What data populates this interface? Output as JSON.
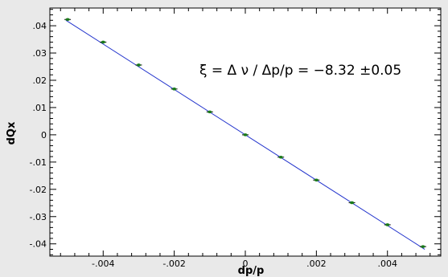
{
  "chart_data": {
    "type": "scatter",
    "xlabel": "dp/p",
    "ylabel": "dQx",
    "xlim": [
      -0.0055,
      0.0055
    ],
    "ylim": [
      -0.0445,
      0.0465
    ],
    "x_ticks": [
      -0.004,
      -0.002,
      0,
      0.002,
      0.004
    ],
    "x_tick_labels": [
      "-.004",
      "-.002",
      "0",
      ".002",
      ".004"
    ],
    "y_ticks": [
      0.04,
      0.03,
      0.02,
      0.01,
      0,
      -0.01,
      -0.02,
      -0.03,
      -0.04
    ],
    "y_tick_labels": [
      ".04",
      ".03",
      ".02",
      ".01",
      "0",
      "-.01",
      "-.02",
      "-.03",
      "-.04"
    ],
    "annotation": "ξ = Δ ν / Δp/p = −8.32 ±0.05",
    "grid": false,
    "series": [
      {
        "x": [
          -0.005,
          -0.004,
          -0.003,
          -0.002,
          -0.001,
          0.0,
          0.001,
          0.002,
          0.003,
          0.004,
          0.005
        ],
        "y": [
          0.0423,
          0.034,
          0.0256,
          0.0168,
          0.0084,
          0.0,
          -0.0082,
          -0.0166,
          -0.0249,
          -0.033,
          -0.041
        ],
        "marker_color": "#1a7a1a"
      }
    ],
    "fit_line": {
      "slope": -8.32,
      "intercept": 0.0,
      "color": "#2233cc"
    }
  }
}
